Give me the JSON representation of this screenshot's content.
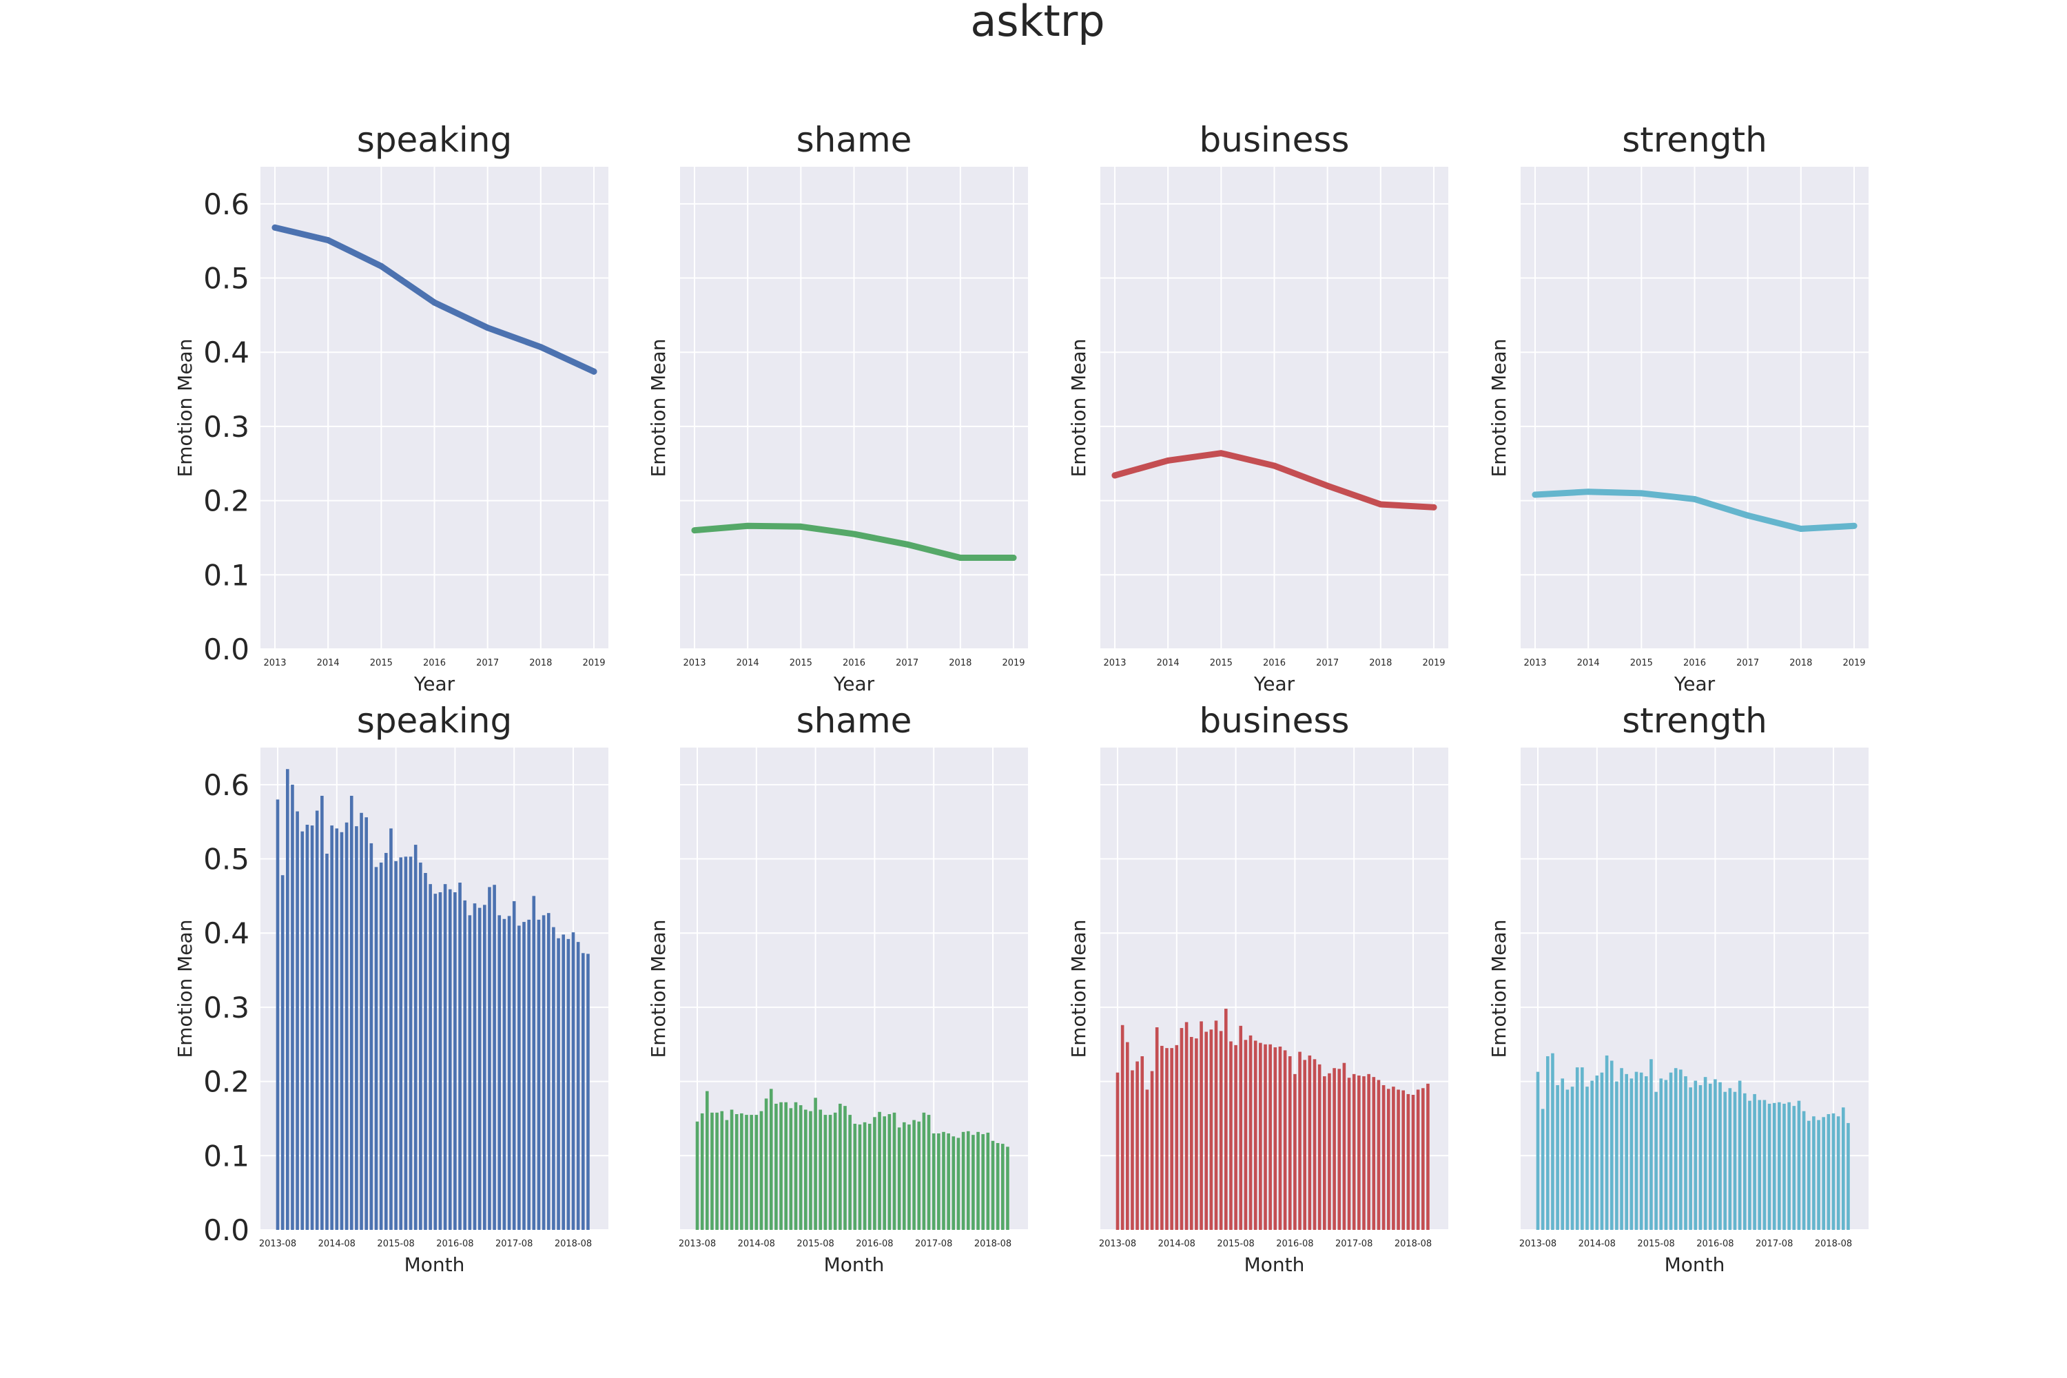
{
  "title": "asktrp",
  "ylim": [
    0,
    0.65
  ],
  "yticks": [
    "0.0",
    "0.1",
    "0.2",
    "0.3",
    "0.4",
    "0.5",
    "0.6"
  ],
  "colors": [
    "#4c72b0",
    "#55a868",
    "#c44e52",
    "#64b5cd"
  ],
  "plot_bg": "#eaeaf2",
  "chart_data": [
    {
      "type": "line",
      "title": "speaking",
      "xlabel": "Year",
      "ylabel": "Emotion Mean",
      "x": [
        "2013",
        "2014",
        "2015",
        "2016",
        "2017",
        "2018",
        "2019"
      ],
      "values": [
        0.568,
        0.551,
        0.516,
        0.467,
        0.433,
        0.407,
        0.374
      ]
    },
    {
      "type": "line",
      "title": "shame",
      "xlabel": "Year",
      "ylabel": "Emotion Mean",
      "x": [
        "2013",
        "2014",
        "2015",
        "2016",
        "2017",
        "2018",
        "2019"
      ],
      "values": [
        0.16,
        0.166,
        0.165,
        0.155,
        0.141,
        0.123,
        0.123
      ]
    },
    {
      "type": "line",
      "title": "business",
      "xlabel": "Year",
      "ylabel": "Emotion Mean",
      "x": [
        "2013",
        "2014",
        "2015",
        "2016",
        "2017",
        "2018",
        "2019"
      ],
      "values": [
        0.234,
        0.254,
        0.264,
        0.247,
        0.22,
        0.195,
        0.191
      ]
    },
    {
      "type": "line",
      "title": "strength",
      "xlabel": "Year",
      "ylabel": "Emotion Mean",
      "x": [
        "2013",
        "2014",
        "2015",
        "2016",
        "2017",
        "2018",
        "2019"
      ],
      "values": [
        0.208,
        0.212,
        0.21,
        0.202,
        0.18,
        0.162,
        0.166
      ]
    },
    {
      "type": "bar",
      "title": "speaking",
      "xlabel": "Month",
      "ylabel": "Emotion Mean",
      "xtick_labels": [
        "2013-08",
        "2014-08",
        "2015-08",
        "2016-08",
        "2017-08",
        "2018-08"
      ],
      "values": [
        0.58,
        0.478,
        0.621,
        0.6,
        0.564,
        0.537,
        0.546,
        0.545,
        0.565,
        0.585,
        0.507,
        0.545,
        0.541,
        0.536,
        0.549,
        0.585,
        0.544,
        0.562,
        0.556,
        0.521,
        0.489,
        0.495,
        0.508,
        0.541,
        0.497,
        0.502,
        0.503,
        0.503,
        0.519,
        0.495,
        0.481,
        0.466,
        0.453,
        0.455,
        0.466,
        0.459,
        0.455,
        0.468,
        0.444,
        0.424,
        0.44,
        0.434,
        0.438,
        0.462,
        0.465,
        0.424,
        0.419,
        0.423,
        0.443,
        0.41,
        0.415,
        0.418,
        0.45,
        0.418,
        0.424,
        0.427,
        0.408,
        0.393,
        0.398,
        0.392,
        0.401,
        0.388,
        0.373,
        0.372
      ]
    },
    {
      "type": "bar",
      "title": "shame",
      "xlabel": "Month",
      "ylabel": "Emotion Mean",
      "xtick_labels": [
        "2013-08",
        "2014-08",
        "2015-08",
        "2016-08",
        "2017-08",
        "2018-08"
      ],
      "values": [
        0.146,
        0.157,
        0.187,
        0.158,
        0.158,
        0.16,
        0.148,
        0.162,
        0.156,
        0.157,
        0.155,
        0.155,
        0.155,
        0.16,
        0.177,
        0.19,
        0.17,
        0.172,
        0.172,
        0.164,
        0.172,
        0.168,
        0.162,
        0.16,
        0.178,
        0.162,
        0.155,
        0.155,
        0.158,
        0.17,
        0.167,
        0.155,
        0.143,
        0.142,
        0.145,
        0.143,
        0.152,
        0.159,
        0.153,
        0.156,
        0.158,
        0.138,
        0.145,
        0.142,
        0.148,
        0.146,
        0.158,
        0.155,
        0.13,
        0.13,
        0.132,
        0.13,
        0.126,
        0.124,
        0.132,
        0.133,
        0.128,
        0.132,
        0.129,
        0.131,
        0.12,
        0.117,
        0.116,
        0.112
      ]
    },
    {
      "type": "bar",
      "title": "business",
      "xlabel": "Month",
      "ylabel": "Emotion Mean",
      "xtick_labels": [
        "2013-08",
        "2014-08",
        "2015-08",
        "2016-08",
        "2017-08",
        "2018-08"
      ],
      "values": [
        0.212,
        0.276,
        0.253,
        0.215,
        0.227,
        0.234,
        0.189,
        0.214,
        0.273,
        0.248,
        0.245,
        0.245,
        0.249,
        0.272,
        0.28,
        0.26,
        0.258,
        0.281,
        0.267,
        0.27,
        0.282,
        0.268,
        0.298,
        0.254,
        0.249,
        0.275,
        0.256,
        0.262,
        0.255,
        0.252,
        0.25,
        0.25,
        0.246,
        0.247,
        0.242,
        0.234,
        0.21,
        0.24,
        0.229,
        0.235,
        0.23,
        0.223,
        0.207,
        0.211,
        0.218,
        0.217,
        0.225,
        0.205,
        0.21,
        0.208,
        0.207,
        0.21,
        0.206,
        0.202,
        0.195,
        0.19,
        0.193,
        0.189,
        0.188,
        0.183,
        0.182,
        0.189,
        0.191,
        0.197
      ]
    },
    {
      "type": "bar",
      "title": "strength",
      "xlabel": "Month",
      "ylabel": "Emotion Mean",
      "xtick_labels": [
        "2013-08",
        "2014-08",
        "2015-08",
        "2016-08",
        "2017-08",
        "2018-08"
      ],
      "values": [
        0.213,
        0.163,
        0.234,
        0.238,
        0.195,
        0.204,
        0.189,
        0.193,
        0.219,
        0.219,
        0.193,
        0.201,
        0.208,
        0.212,
        0.235,
        0.228,
        0.2,
        0.218,
        0.21,
        0.204,
        0.213,
        0.212,
        0.207,
        0.23,
        0.186,
        0.204,
        0.202,
        0.212,
        0.218,
        0.216,
        0.207,
        0.192,
        0.201,
        0.195,
        0.206,
        0.197,
        0.203,
        0.199,
        0.186,
        0.191,
        0.186,
        0.201,
        0.184,
        0.174,
        0.183,
        0.175,
        0.175,
        0.17,
        0.171,
        0.172,
        0.17,
        0.172,
        0.167,
        0.174,
        0.16,
        0.147,
        0.153,
        0.148,
        0.152,
        0.156,
        0.157,
        0.153,
        0.165,
        0.144
      ]
    }
  ]
}
